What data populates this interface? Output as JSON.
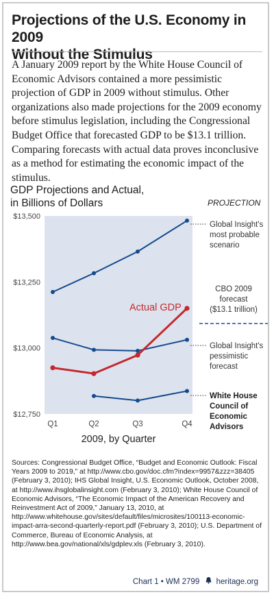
{
  "title_line1": "Projections of the U.S. Economy in 2009",
  "title_line2": "Without the Stimulus",
  "intro": "A January 2009 report by the White House Council of Economic Advisors contained a more pessimistic projection of GDP in 2009 without stimulus. Other organizations also made projections for the 2009 economy before stimulus legislation, including the Congressional Budget Office that forecasted GDP to be $13.1 trillion. Comparing forecasts with actual data proves inconclusive as a method for estimating the economic impact of the stimulus.",
  "colors": {
    "plot_bg": "#dde3ee",
    "projection_line": "#144a8c",
    "actual_line": "#c4282d",
    "cbo_dash": "#1c4fa0",
    "annotation_text": "#333333"
  },
  "chart_data": {
    "type": "line",
    "title": "GDP Projections and Actual,",
    "subtitle": "in Billions of Dollars",
    "xlabel": "2009, by Quarter",
    "ylabel": "",
    "categories": [
      "Q1",
      "Q2",
      "Q3",
      "Q4"
    ],
    "ylim": [
      12750,
      13500
    ],
    "yticks": [
      12750,
      13000,
      13250,
      13500
    ],
    "ytick_labels": [
      "$12,750",
      "$13,000",
      "$13,250",
      "$13,500"
    ],
    "legend_header": "PROJECTION",
    "series": [
      {
        "name": "Global Insight's most probable scenario",
        "values": [
          13212,
          13283,
          13365,
          13482
        ],
        "color": "#144a8c",
        "label_lines": [
          "Global Insight's",
          "most probable",
          "scenario"
        ]
      },
      {
        "name": "Global Insight's pessimistic forecast",
        "values": [
          13038,
          12993,
          12989,
          13031
        ],
        "color": "#144a8c",
        "label_lines": [
          "Global Insight's",
          "pessimistic",
          "forecast"
        ]
      },
      {
        "name": "White House Council of Economic Advisors",
        "values": [
          null,
          12818,
          12801,
          12837
        ],
        "color": "#144a8c",
        "label_lines": [
          "White House",
          "Council of",
          "Economic",
          "Advisors"
        ]
      },
      {
        "name": "Actual GDP",
        "values": [
          12925,
          12903,
          12973,
          13150
        ],
        "color": "#c4282d",
        "label_lines": [
          "Actual GDP"
        ]
      }
    ],
    "reference_line": {
      "name": "CBO 2009 forecast ($13.1 trillion)",
      "label_lines": [
        "CBO 2009",
        "forecast",
        "($13.1 trillion)"
      ],
      "style": "dashed"
    },
    "grid": false,
    "legend": "right"
  },
  "sources": {
    "label": "Sources:",
    "text": "Congressional Budget Office, “Budget and Economic Outlook: Fiscal Years 2009 to 2019,” at http://www.cbo.gov/doc.cfm?index=9957&zzz=38405 (February 3, 2010); IHS Global Insight, U.S. Economic Outlook, October 2008, at http://www.ihsglobalinsight.com (February 3, 2010); White House Council of Economic Advisors, “The Economic Impact of the American Recovery and Reinvestment Act of 2009,” January 13, 2010, at http://www.whitehouse.gov/sites/default/files/microsites/100113-economic-impact-arra-second-quarterly-report.pdf (February 3, 2010); U.S. Department of Commerce, Bureau of Economic Analysis, at http://www.bea.gov/national/xls/gdplev.xls (February 3, 2010)."
  },
  "credit": {
    "chart_id": "Chart 1 • WM 2799",
    "site": "heritage.org",
    "bell_icon": "liberty-bell-icon"
  }
}
